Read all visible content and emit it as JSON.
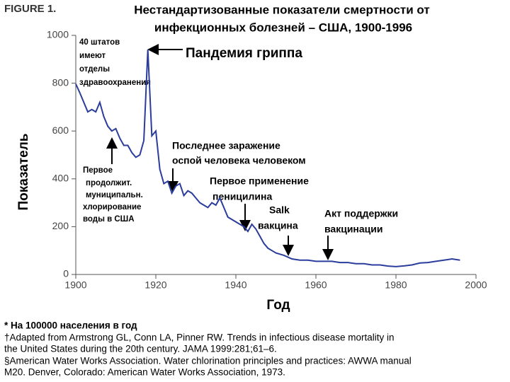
{
  "figure_label": "FIGURE 1.",
  "chart_data": {
    "type": "line",
    "title": [
      "Нестандартизованные показатели смертности от",
      "инфекционных болезней – США, 1900-1996"
    ],
    "x_label": "Год",
    "y_label": "Показатель",
    "xlim": [
      1900,
      2000
    ],
    "xticks": [
      1900,
      1920,
      1940,
      1960,
      1980,
      2000
    ],
    "ylim": [
      0,
      1000
    ],
    "yticks": [
      0,
      200,
      400,
      600,
      800,
      1000
    ],
    "x": [
      1900,
      1901,
      1902,
      1903,
      1904,
      1905,
      1906,
      1907,
      1908,
      1909,
      1910,
      1911,
      1912,
      1913,
      1914,
      1915,
      1916,
      1917,
      1918,
      1919,
      1920,
      1921,
      1922,
      1923,
      1924,
      1925,
      1926,
      1927,
      1928,
      1929,
      1930,
      1931,
      1932,
      1933,
      1934,
      1935,
      1936,
      1937,
      1938,
      1939,
      1940,
      1941,
      1942,
      1943,
      1944,
      1945,
      1946,
      1947,
      1948,
      1949,
      1950,
      1952,
      1954,
      1956,
      1958,
      1960,
      1962,
      1964,
      1966,
      1968,
      1970,
      1972,
      1974,
      1976,
      1978,
      1980,
      1982,
      1984,
      1986,
      1988,
      1990,
      1992,
      1994,
      1996
    ],
    "series": [
      {
        "color": "#2b3d9c",
        "values": [
          797,
          760,
          720,
          680,
          690,
          680,
          720,
          660,
          620,
          600,
          610,
          570,
          540,
          540,
          510,
          490,
          500,
          560,
          940,
          580,
          600,
          440,
          380,
          390,
          340,
          370,
          380,
          330,
          350,
          340,
          320,
          300,
          290,
          280,
          300,
          290,
          320,
          280,
          240,
          230,
          220,
          210,
          200,
          180,
          210,
          190,
          160,
          130,
          110,
          100,
          90,
          80,
          65,
          60,
          60,
          55,
          55,
          55,
          50,
          50,
          45,
          45,
          40,
          40,
          35,
          33,
          36,
          40,
          48,
          50,
          55,
          60,
          65,
          60
        ]
      }
    ],
    "annotations": [
      {
        "lines": [
          "40 штатов",
          "имеют",
          "отделы",
          "здравоохранения"
        ]
      },
      {
        "lines": [
          "Пандемия гриппа"
        ]
      },
      {
        "lines": [
          "Первое",
          "продолжит.",
          "муниципальн.",
          "хлорирование",
          "воды в США"
        ]
      },
      {
        "lines": [
          "Последнее заражение",
          "оспой человека человеком"
        ]
      },
      {
        "lines": [
          "Первое применение",
          "пеницилина"
        ]
      },
      {
        "lines": [
          "Salk",
          "вакцина"
        ]
      },
      {
        "lines": [
          "Акт поддержки",
          "вакцинации"
        ]
      }
    ]
  },
  "footnotes": [
    [
      "* На 100000 населения в год"
    ],
    [
      "†Adapted from Armstrong GL, Conn LA, Pinner RW. Trends in infectious disease mortality in",
      "the United States during the 20th century. JAMA 1999:281;61–6."
    ],
    [
      "§American Water Works Association. Water chlorination principles and practices: AWWA manual",
      "M20. Denver, Colorado: American Water Works Association, 1973."
    ]
  ]
}
